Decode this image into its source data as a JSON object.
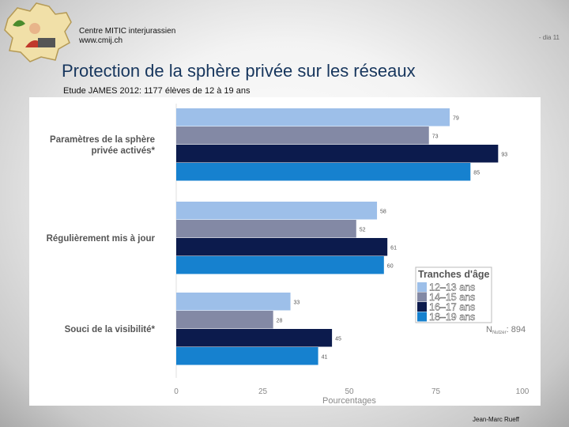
{
  "header": {
    "org": "Centre MITIC interjurassien",
    "website": "www.cmij.ch",
    "slide_number": "- dia 11"
  },
  "title": "Protection de la sphère privée sur les réseaux",
  "subtitle": "Etude JAMES 2012: 1177 élèves de 12 à 19 ans",
  "footer": "Jean-Marc Rueff",
  "chart_data": {
    "type": "bar",
    "orientation": "horizontal",
    "categories": [
      [
        "Paramètres de la sphère",
        "privée activés*"
      ],
      [
        "Régulièrement mis à jour"
      ],
      [
        "Souci de la visibilité*"
      ]
    ],
    "series": [
      {
        "name": "12–13 ans",
        "color": "#9dbfe9",
        "values": [
          79,
          58,
          33
        ]
      },
      {
        "name": "14–15 ans",
        "color": "#8389a5",
        "values": [
          73,
          52,
          28
        ]
      },
      {
        "name": "16–17 ans",
        "color": "#0c1b4d",
        "values": [
          93,
          61,
          45
        ]
      },
      {
        "name": "18–19 ans",
        "color": "#1681cf",
        "values": [
          85,
          60,
          41
        ]
      }
    ],
    "xlabel": "Pourcentages",
    "xlim": [
      0,
      100
    ],
    "xticks": [
      0,
      25,
      50,
      75,
      100
    ],
    "legend_title": "Tranches d'âge",
    "legend_position": "right",
    "n_label": "N",
    "n_subscript": "Nutzer",
    "n_value": "894"
  }
}
